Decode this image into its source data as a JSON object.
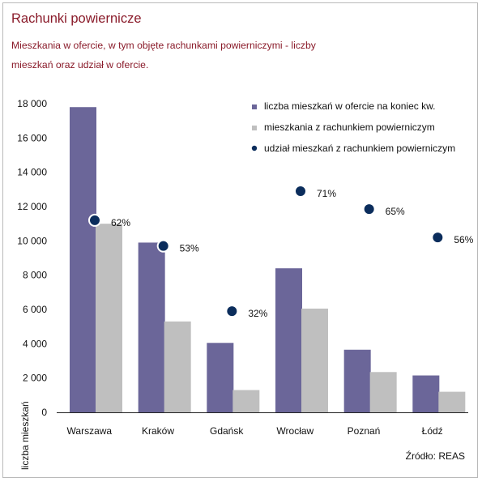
{
  "header": {
    "title": "Rachunki powiernicze",
    "subtitle": "Mieszkania w ofercie, w tym objęte rachunkami powierniczymi - liczby mieszkań oraz udział w ofercie."
  },
  "source": "Źródło: REAS",
  "colors": {
    "series1": "#6b6699",
    "series2": "#bfbfbf",
    "dots": "#0b2d5c",
    "title": "#8a1b2a"
  },
  "chart_data": {
    "type": "bar",
    "categories": [
      "Warszawa",
      "Kraków",
      "Gdańsk",
      "Wrocław",
      "Poznań",
      "Łódź"
    ],
    "series": [
      {
        "name": "liczba mieszkań w ofercie na koniec kw.",
        "values": [
          17800,
          9900,
          4050,
          8400,
          3650,
          2150
        ]
      },
      {
        "name": "mieszkania z rachunkiem powierniczym",
        "values": [
          11000,
          5300,
          1300,
          6050,
          2350,
          1200
        ]
      }
    ],
    "share_series": {
      "name": "udział mieszkań z rachunkiem powierniczym",
      "values": [
        62,
        53,
        32,
        71,
        65,
        56
      ],
      "labels": [
        "62%",
        "53%",
        "32%",
        "71%",
        "65%",
        "56%"
      ],
      "marker_y": [
        11200,
        9700,
        5900,
        12900,
        11850,
        10200
      ]
    },
    "yticks": [
      "0",
      "2 000",
      "4 000",
      "6 000",
      "8 000",
      "10 000",
      "12 000",
      "14 000",
      "16 000",
      "18 000"
    ],
    "ylim": [
      0,
      18000
    ],
    "ylabel": "liczba mieszkań",
    "legend_position": "top-right",
    "grid": false
  }
}
